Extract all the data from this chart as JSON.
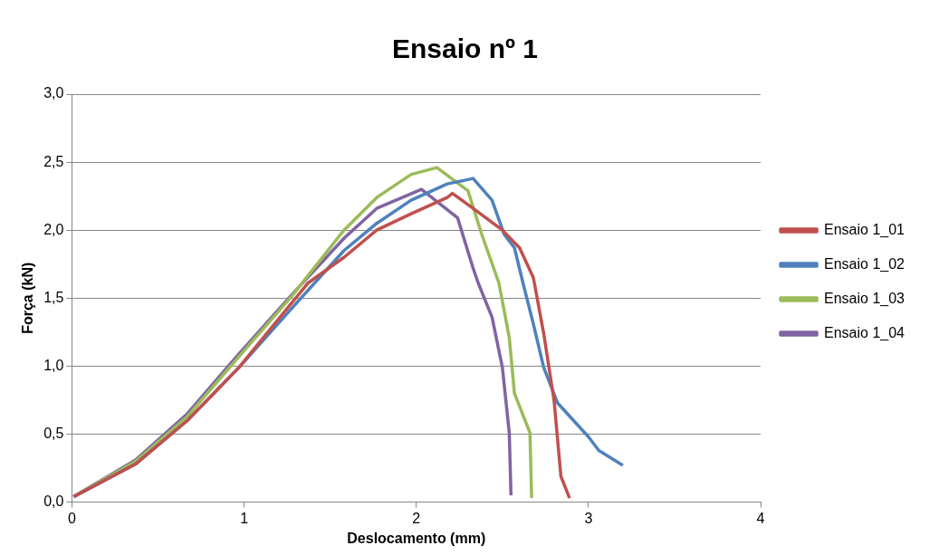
{
  "chart_data": {
    "type": "line",
    "title": "Ensaio nº 1",
    "xlabel": "Deslocamento (mm)",
    "ylabel": "Força (kN)",
    "xlim": [
      0,
      4
    ],
    "xticks": [
      0,
      1,
      2,
      3,
      4
    ],
    "ylim": [
      0,
      3
    ],
    "yticks": [
      {
        "value": 0,
        "label": "0,0"
      },
      {
        "value": 0.5,
        "label": "0,5"
      },
      {
        "value": 1,
        "label": "1,0"
      },
      {
        "value": 1.5,
        "label": "1,5"
      },
      {
        "value": 2,
        "label": "2,0"
      },
      {
        "value": 2.5,
        "label": "2,5"
      },
      {
        "value": 3,
        "label": "3,0"
      }
    ],
    "grid": "y",
    "legend": "right",
    "marker": "none",
    "line_style": "solid",
    "series": [
      {
        "name": "Ensaio 1_01",
        "color": "#c0504d",
        "x": [
          0.01,
          0.37,
          0.67,
          0.97,
          1.37,
          1.58,
          1.77,
          1.97,
          2.18,
          2.21,
          2.33,
          2.5,
          2.6,
          2.68,
          2.74,
          2.8,
          2.84,
          2.89
        ],
        "values": [
          0.04,
          0.28,
          0.6,
          0.99,
          1.61,
          1.8,
          2.0,
          2.12,
          2.24,
          2.27,
          2.16,
          2.0,
          1.87,
          1.65,
          1.24,
          0.75,
          0.19,
          0.03
        ]
      },
      {
        "name": "Ensaio 1_02",
        "color": "#4f81bd",
        "x": [
          0.01,
          0.37,
          0.67,
          0.97,
          1.28,
          1.58,
          1.77,
          1.97,
          2.18,
          2.33,
          2.44,
          2.51,
          2.57,
          2.62,
          2.68,
          2.74,
          2.82,
          3.0,
          3.06,
          3.2
        ],
        "values": [
          0.04,
          0.28,
          0.6,
          0.99,
          1.43,
          1.85,
          2.05,
          2.22,
          2.34,
          2.38,
          2.22,
          1.97,
          1.87,
          1.61,
          1.31,
          0.99,
          0.73,
          0.48,
          0.38,
          0.27
        ]
      },
      {
        "name": "Ensaio 1_03",
        "color": "#9bbb59",
        "x": [
          0.01,
          0.37,
          0.67,
          0.97,
          1.28,
          1.58,
          1.77,
          1.97,
          2.12,
          2.3,
          2.38,
          2.48,
          2.54,
          2.57,
          2.66,
          2.67
        ],
        "values": [
          0.04,
          0.3,
          0.63,
          1.07,
          1.52,
          2.0,
          2.24,
          2.41,
          2.46,
          2.29,
          1.97,
          1.61,
          1.21,
          0.8,
          0.51,
          0.03
        ]
      },
      {
        "name": "Ensaio 1_04",
        "color": "#8064a2",
        "x": [
          0.01,
          0.37,
          0.67,
          0.97,
          1.28,
          1.58,
          1.77,
          2.03,
          2.24,
          2.33,
          2.36,
          2.44,
          2.5,
          2.54,
          2.55
        ],
        "values": [
          0.04,
          0.31,
          0.65,
          1.09,
          1.53,
          1.94,
          2.16,
          2.3,
          2.09,
          1.72,
          1.61,
          1.36,
          0.99,
          0.51,
          0.05
        ]
      }
    ]
  }
}
